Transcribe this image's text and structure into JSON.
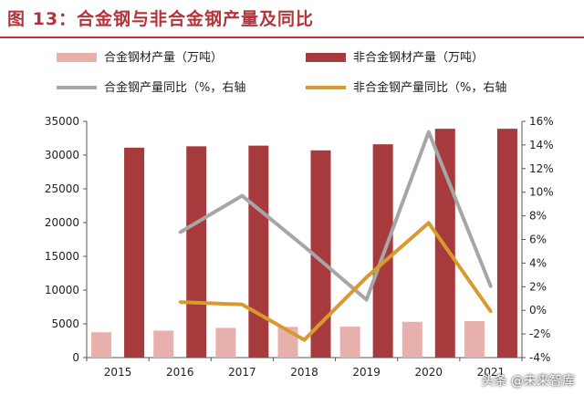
{
  "title": "图 13：合金钢与非合金钢产量及同比",
  "watermark": "头条 @未来智库",
  "chart_data": {
    "type": "bar",
    "categories": [
      "2015",
      "2016",
      "2017",
      "2018",
      "2019",
      "2020",
      "2021"
    ],
    "series": [
      {
        "name": "合金钢材产量（万吨）",
        "kind": "bar",
        "axis": "left",
        "color": "#e8b0ad",
        "values": [
          3750,
          4000,
          4400,
          4550,
          4600,
          5300,
          5400
        ]
      },
      {
        "name": "非合金钢材产量（万吨）",
        "kind": "bar",
        "axis": "left",
        "color": "#a63a3c",
        "values": [
          31100,
          31300,
          31400,
          30700,
          31600,
          33900,
          33900
        ]
      },
      {
        "name": "合金钢产量同比（%，右轴",
        "kind": "line",
        "axis": "right",
        "color": "#a6a6a6",
        "values": [
          null,
          6.6,
          9.7,
          5.4,
          0.9,
          15.1,
          2.0
        ]
      },
      {
        "name": "非合金钢产量同比（%，右轴",
        "kind": "line",
        "axis": "right",
        "color": "#d89a2e",
        "values": [
          null,
          0.7,
          0.5,
          -2.5,
          2.8,
          7.4,
          -0.1
        ]
      }
    ],
    "y_left": {
      "min": 0,
      "max": 35000,
      "step": 5000,
      "ticks": [
        "0",
        "5000",
        "10000",
        "15000",
        "20000",
        "25000",
        "30000",
        "35000"
      ]
    },
    "y_right": {
      "min": -4,
      "max": 16,
      "step": 2,
      "ticks": [
        "-4%",
        "-2%",
        "0%",
        "2%",
        "4%",
        "6%",
        "8%",
        "10%",
        "12%",
        "14%",
        "16%"
      ]
    },
    "grid": false,
    "legend_position": "top"
  }
}
